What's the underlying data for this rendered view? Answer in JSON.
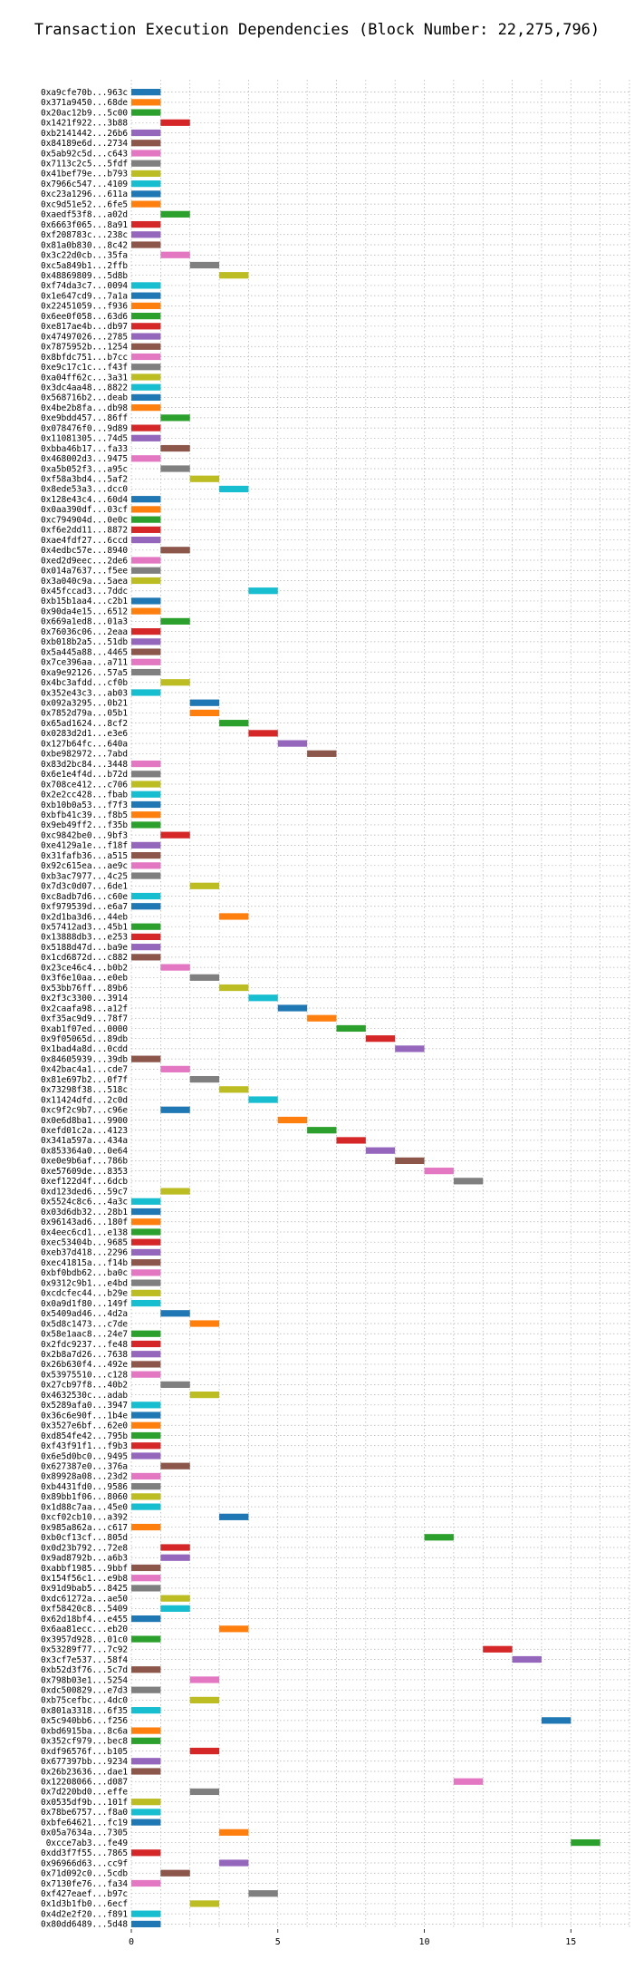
{
  "chart_data": {
    "type": "bar",
    "title": "Transaction Execution Dependencies (Block Number: 22,275,796)",
    "xlabel": "",
    "ylabel": "",
    "xlim": [
      0,
      17
    ],
    "xticks": [
      0,
      5,
      10,
      15
    ],
    "grid": true,
    "bar_length": 1,
    "colors": [
      "#1f77b4",
      "#ff7f0e",
      "#2ca02c",
      "#d62728",
      "#9467bd",
      "#8c564b",
      "#e377c2",
      "#7f7f7f",
      "#bcbd22",
      "#17becf"
    ],
    "transactions": [
      {
        "label": "0xa9cfe70b...963c",
        "start": 0,
        "color": "#1f77b4"
      },
      {
        "label": "0x371a9450...68de",
        "start": 0,
        "color": "#ff7f0e"
      },
      {
        "label": "0x20ac12b9...5c00",
        "start": 0,
        "color": "#2ca02c"
      },
      {
        "label": "0x1421f922...3b88",
        "start": 1,
        "color": "#d62728"
      },
      {
        "label": "0xb2141442...26b6",
        "start": 0,
        "color": "#9467bd"
      },
      {
        "label": "0x84189e6d...2734",
        "start": 0,
        "color": "#8c564b"
      },
      {
        "label": "0x5ab92c5d...c643",
        "start": 0,
        "color": "#e377c2"
      },
      {
        "label": "0x7113c2c5...5fdf",
        "start": 0,
        "color": "#7f7f7f"
      },
      {
        "label": "0x41bef79e...b793",
        "start": 0,
        "color": "#bcbd22"
      },
      {
        "label": "0x7966c547...4109",
        "start": 0,
        "color": "#17becf"
      },
      {
        "label": "0xc23a1296...611a",
        "start": 0,
        "color": "#1f77b4"
      },
      {
        "label": "0xc9d51e52...6fe5",
        "start": 0,
        "color": "#ff7f0e"
      },
      {
        "label": "0xaedf53f8...a02d",
        "start": 1,
        "color": "#2ca02c"
      },
      {
        "label": "0x6663f065...8a91",
        "start": 0,
        "color": "#d62728"
      },
      {
        "label": "0xf208783c...238c",
        "start": 0,
        "color": "#9467bd"
      },
      {
        "label": "0x81a0b830...8c42",
        "start": 0,
        "color": "#8c564b"
      },
      {
        "label": "0x3c22d0cb...35fa",
        "start": 1,
        "color": "#e377c2"
      },
      {
        "label": "0xc5a849b1...2ffb",
        "start": 2,
        "color": "#7f7f7f"
      },
      {
        "label": "0x48869809...5d8b",
        "start": 3,
        "color": "#bcbd22"
      },
      {
        "label": "0xf74da3c7...0094",
        "start": 0,
        "color": "#17becf"
      },
      {
        "label": "0x1e647cd9...7a1a",
        "start": 0,
        "color": "#1f77b4"
      },
      {
        "label": "0x22451059...f936",
        "start": 0,
        "color": "#ff7f0e"
      },
      {
        "label": "0x6ee0f058...63d6",
        "start": 0,
        "color": "#2ca02c"
      },
      {
        "label": "0xe817ae4b...db97",
        "start": 0,
        "color": "#d62728"
      },
      {
        "label": "0x47497026...2785",
        "start": 0,
        "color": "#9467bd"
      },
      {
        "label": "0x7875952b...1254",
        "start": 0,
        "color": "#8c564b"
      },
      {
        "label": "0x8bfdc751...b7cc",
        "start": 0,
        "color": "#e377c2"
      },
      {
        "label": "0xe9c17c1c...f43f",
        "start": 0,
        "color": "#7f7f7f"
      },
      {
        "label": "0xa04ff62c...3a31",
        "start": 0,
        "color": "#bcbd22"
      },
      {
        "label": "0x3dc4aa48...8822",
        "start": 0,
        "color": "#17becf"
      },
      {
        "label": "0x568716b2...deab",
        "start": 0,
        "color": "#1f77b4"
      },
      {
        "label": "0x4be2b8fa...db98",
        "start": 0,
        "color": "#ff7f0e"
      },
      {
        "label": "0xe9bdd457...86ff",
        "start": 1,
        "color": "#2ca02c"
      },
      {
        "label": "0x078476f0...9d89",
        "start": 0,
        "color": "#d62728"
      },
      {
        "label": "0x11081305...74d5",
        "start": 0,
        "color": "#9467bd"
      },
      {
        "label": "0xbba46b17...fa33",
        "start": 1,
        "color": "#8c564b"
      },
      {
        "label": "0x468002d3...9475",
        "start": 0,
        "color": "#e377c2"
      },
      {
        "label": "0xa5b052f3...a95c",
        "start": 1,
        "color": "#7f7f7f"
      },
      {
        "label": "0xf58a3bd4...5af2",
        "start": 2,
        "color": "#bcbd22"
      },
      {
        "label": "0x8ede53a3...dcc0",
        "start": 3,
        "color": "#17becf"
      },
      {
        "label": "0x128e43c4...60d4",
        "start": 0,
        "color": "#1f77b4"
      },
      {
        "label": "0x0aa390df...03cf",
        "start": 0,
        "color": "#ff7f0e"
      },
      {
        "label": "0xc794904d...0e0c",
        "start": 0,
        "color": "#2ca02c"
      },
      {
        "label": "0xf6e2dd11...8872",
        "start": 0,
        "color": "#d62728"
      },
      {
        "label": "0xae4fdf27...6ccd",
        "start": 0,
        "color": "#9467bd"
      },
      {
        "label": "0x4edbc57e...8940",
        "start": 1,
        "color": "#8c564b"
      },
      {
        "label": "0xed2d9eec...2de6",
        "start": 0,
        "color": "#e377c2"
      },
      {
        "label": "0x014a7637...f5ee",
        "start": 0,
        "color": "#7f7f7f"
      },
      {
        "label": "0x3a040c9a...5aea",
        "start": 0,
        "color": "#bcbd22"
      },
      {
        "label": "0x45fccad3...7ddc",
        "start": 4,
        "color": "#17becf"
      },
      {
        "label": "0xb15b1aa4...c2b1",
        "start": 0,
        "color": "#1f77b4"
      },
      {
        "label": "0x90da4e15...6512",
        "start": 0,
        "color": "#ff7f0e"
      },
      {
        "label": "0x669a1ed8...01a3",
        "start": 1,
        "color": "#2ca02c"
      },
      {
        "label": "0x76036c06...2eaa",
        "start": 0,
        "color": "#d62728"
      },
      {
        "label": "0xb018b2a5...51db",
        "start": 0,
        "color": "#9467bd"
      },
      {
        "label": "0x5a445a88...4465",
        "start": 0,
        "color": "#8c564b"
      },
      {
        "label": "0x7ce396aa...a711",
        "start": 0,
        "color": "#e377c2"
      },
      {
        "label": "0xa9e92126...57a5",
        "start": 0,
        "color": "#7f7f7f"
      },
      {
        "label": "0x4bc3afdd...cf0b",
        "start": 1,
        "color": "#bcbd22"
      },
      {
        "label": "0x352e43c3...ab03",
        "start": 0,
        "color": "#17becf"
      },
      {
        "label": "0x092a3295...0b21",
        "start": 2,
        "color": "#1f77b4"
      },
      {
        "label": "0x7852d79a...05b1",
        "start": 2,
        "color": "#ff7f0e"
      },
      {
        "label": "0x65ad1624...8cf2",
        "start": 3,
        "color": "#2ca02c"
      },
      {
        "label": "0x0283d2d1...e3e6",
        "start": 4,
        "color": "#d62728"
      },
      {
        "label": "0x127b64fc...640a",
        "start": 5,
        "color": "#9467bd"
      },
      {
        "label": "0xbe982972...7abd",
        "start": 6,
        "color": "#8c564b"
      },
      {
        "label": "0x83d2bc84...3448",
        "start": 0,
        "color": "#e377c2"
      },
      {
        "label": "0x6e1e4f4d...b72d",
        "start": 0,
        "color": "#7f7f7f"
      },
      {
        "label": "0x708ce412...c706",
        "start": 0,
        "color": "#bcbd22"
      },
      {
        "label": "0x2e2cc428...fbab",
        "start": 0,
        "color": "#17becf"
      },
      {
        "label": "0xb10b0a53...f7f3",
        "start": 0,
        "color": "#1f77b4"
      },
      {
        "label": "0xbfb41c39...f8b5",
        "start": 0,
        "color": "#ff7f0e"
      },
      {
        "label": "0x9eb49ff2...f35b",
        "start": 0,
        "color": "#2ca02c"
      },
      {
        "label": "0xc9842be0...9bf3",
        "start": 1,
        "color": "#d62728"
      },
      {
        "label": "0xe4129a1e...f18f",
        "start": 0,
        "color": "#9467bd"
      },
      {
        "label": "0x31fafb36...a515",
        "start": 0,
        "color": "#8c564b"
      },
      {
        "label": "0x92c615ea...ae9c",
        "start": 0,
        "color": "#e377c2"
      },
      {
        "label": "0xb3ac7977...4c25",
        "start": 0,
        "color": "#7f7f7f"
      },
      {
        "label": "0x7d3c0d07...6de1",
        "start": 2,
        "color": "#bcbd22"
      },
      {
        "label": "0xc8adb7d6...c60e",
        "start": 0,
        "color": "#17becf"
      },
      {
        "label": "0xf979539d...e6a7",
        "start": 0,
        "color": "#1f77b4"
      },
      {
        "label": "0x2d1ba3d6...44eb",
        "start": 3,
        "color": "#ff7f0e"
      },
      {
        "label": "0x57412ad3...45b1",
        "start": 0,
        "color": "#2ca02c"
      },
      {
        "label": "0x13888db3...e253",
        "start": 0,
        "color": "#d62728"
      },
      {
        "label": "0x5188d47d...ba9e",
        "start": 0,
        "color": "#9467bd"
      },
      {
        "label": "0x1cd6872d...c882",
        "start": 0,
        "color": "#8c564b"
      },
      {
        "label": "0x23ce46c4...b0b2",
        "start": 1,
        "color": "#e377c2"
      },
      {
        "label": "0x3f6e10aa...e0eb",
        "start": 2,
        "color": "#7f7f7f"
      },
      {
        "label": "0x53bb76ff...89b6",
        "start": 3,
        "color": "#bcbd22"
      },
      {
        "label": "0x2f3c3300...3914",
        "start": 4,
        "color": "#17becf"
      },
      {
        "label": "0x2caafa98...a12f",
        "start": 5,
        "color": "#1f77b4"
      },
      {
        "label": "0xf35ac9d9...78f7",
        "start": 6,
        "color": "#ff7f0e"
      },
      {
        "label": "0xab1f07ed...0000",
        "start": 7,
        "color": "#2ca02c"
      },
      {
        "label": "0x9f05065d...89db",
        "start": 8,
        "color": "#d62728"
      },
      {
        "label": "0x1bad4a8d...0cdd",
        "start": 9,
        "color": "#9467bd"
      },
      {
        "label": "0x84605939...39db",
        "start": 0,
        "color": "#8c564b"
      },
      {
        "label": "0x42bac4a1...cde7",
        "start": 1,
        "color": "#e377c2"
      },
      {
        "label": "0x81e697b2...0f7f",
        "start": 2,
        "color": "#7f7f7f"
      },
      {
        "label": "0x73298f38...518c",
        "start": 3,
        "color": "#bcbd22"
      },
      {
        "label": "0x11424dfd...2c0d",
        "start": 4,
        "color": "#17becf"
      },
      {
        "label": "0xc9f2c9b7...c96e",
        "start": 1,
        "color": "#1f77b4"
      },
      {
        "label": "0x0e6d8ba1...9900",
        "start": 5,
        "color": "#ff7f0e"
      },
      {
        "label": "0xefd01c2a...4123",
        "start": 6,
        "color": "#2ca02c"
      },
      {
        "label": "0x341a597a...434a",
        "start": 7,
        "color": "#d62728"
      },
      {
        "label": "0x853364a0...0e64",
        "start": 8,
        "color": "#9467bd"
      },
      {
        "label": "0xe0e9b6af...786b",
        "start": 9,
        "color": "#8c564b"
      },
      {
        "label": "0xe57609de...8353",
        "start": 10,
        "color": "#e377c2"
      },
      {
        "label": "0xef122d4f...6dcb",
        "start": 11,
        "color": "#7f7f7f"
      },
      {
        "label": "0xd123ded6...59c7",
        "start": 1,
        "color": "#bcbd22"
      },
      {
        "label": "0x5524c8c6...4a3c",
        "start": 0,
        "color": "#17becf"
      },
      {
        "label": "0x03d6db32...28b1",
        "start": 0,
        "color": "#1f77b4"
      },
      {
        "label": "0x96143ad6...180f",
        "start": 0,
        "color": "#ff7f0e"
      },
      {
        "label": "0x4eec6cd1...e138",
        "start": 0,
        "color": "#2ca02c"
      },
      {
        "label": "0xec53404b...9685",
        "start": 0,
        "color": "#d62728"
      },
      {
        "label": "0xeb37d418...2296",
        "start": 0,
        "color": "#9467bd"
      },
      {
        "label": "0xec41815a...f14b",
        "start": 0,
        "color": "#8c564b"
      },
      {
        "label": "0xbf0bdb62...ba0c",
        "start": 0,
        "color": "#e377c2"
      },
      {
        "label": "0x9312c9b1...e4bd",
        "start": 0,
        "color": "#7f7f7f"
      },
      {
        "label": "0xcdcfec44...b29e",
        "start": 0,
        "color": "#bcbd22"
      },
      {
        "label": "0x0a9d1f80...149f",
        "start": 0,
        "color": "#17becf"
      },
      {
        "label": "0x5409ad46...4d2a",
        "start": 1,
        "color": "#1f77b4"
      },
      {
        "label": "0x5d8c1473...c7de",
        "start": 2,
        "color": "#ff7f0e"
      },
      {
        "label": "0x58e1aac8...24e7",
        "start": 0,
        "color": "#2ca02c"
      },
      {
        "label": "0x2fdc9237...fe48",
        "start": 0,
        "color": "#d62728"
      },
      {
        "label": "0x2b8a7d26...7638",
        "start": 0,
        "color": "#9467bd"
      },
      {
        "label": "0x26b630f4...492e",
        "start": 0,
        "color": "#8c564b"
      },
      {
        "label": "0x53975510...c128",
        "start": 0,
        "color": "#e377c2"
      },
      {
        "label": "0x27cb97f8...40b2",
        "start": 1,
        "color": "#7f7f7f"
      },
      {
        "label": "0x4632530c...adab",
        "start": 2,
        "color": "#bcbd22"
      },
      {
        "label": "0x5289afa0...3947",
        "start": 0,
        "color": "#17becf"
      },
      {
        "label": "0x36c6e90f...1b4e",
        "start": 0,
        "color": "#1f77b4"
      },
      {
        "label": "0x3527e6bf...62e0",
        "start": 0,
        "color": "#ff7f0e"
      },
      {
        "label": "0xd854fe42...795b",
        "start": 0,
        "color": "#2ca02c"
      },
      {
        "label": "0xf43f91f1...f9b3",
        "start": 0,
        "color": "#d62728"
      },
      {
        "label": "0x6e5d0bc0...9495",
        "start": 0,
        "color": "#9467bd"
      },
      {
        "label": "0x627387e0...376a",
        "start": 1,
        "color": "#8c564b"
      },
      {
        "label": "0x89928a08...23d2",
        "start": 0,
        "color": "#e377c2"
      },
      {
        "label": "0xb4431fd0...9586",
        "start": 0,
        "color": "#7f7f7f"
      },
      {
        "label": "0x89bb1f06...8060",
        "start": 0,
        "color": "#bcbd22"
      },
      {
        "label": "0x1d88c7aa...45e0",
        "start": 0,
        "color": "#17becf"
      },
      {
        "label": "0xcf02cb10...a392",
        "start": 3,
        "color": "#1f77b4"
      },
      {
        "label": "0x985a862a...c617",
        "start": 0,
        "color": "#ff7f0e"
      },
      {
        "label": "0xb0cf13cf...805d",
        "start": 10,
        "color": "#2ca02c"
      },
      {
        "label": "0x0d23b792...72e8",
        "start": 1,
        "color": "#d62728"
      },
      {
        "label": "0x9ad8792b...a6b3",
        "start": 1,
        "color": "#9467bd"
      },
      {
        "label": "0xabbf1985...9bbf",
        "start": 0,
        "color": "#8c564b"
      },
      {
        "label": "0x154f56c1...e9b8",
        "start": 0,
        "color": "#e377c2"
      },
      {
        "label": "0x91d9bab5...8425",
        "start": 0,
        "color": "#7f7f7f"
      },
      {
        "label": "0xdc61272a...ae50",
        "start": 1,
        "color": "#bcbd22"
      },
      {
        "label": "0xf58420c8...5409",
        "start": 1,
        "color": "#17becf"
      },
      {
        "label": "0x62d18bf4...e455",
        "start": 0,
        "color": "#1f77b4"
      },
      {
        "label": "0x6aa81ecc...eb20",
        "start": 3,
        "color": "#ff7f0e"
      },
      {
        "label": "0x3957d928...01c0",
        "start": 0,
        "color": "#2ca02c"
      },
      {
        "label": "0x53289f77...7c92",
        "start": 12,
        "color": "#d62728"
      },
      {
        "label": "0x3cf7e537...58f4",
        "start": 13,
        "color": "#9467bd"
      },
      {
        "label": "0xb52d3f76...5c7d",
        "start": 0,
        "color": "#8c564b"
      },
      {
        "label": "0x798b03e1...5254",
        "start": 2,
        "color": "#e377c2"
      },
      {
        "label": "0xdc500829...e7d3",
        "start": 0,
        "color": "#7f7f7f"
      },
      {
        "label": "0xb75cefbc...4dc0",
        "start": 2,
        "color": "#bcbd22"
      },
      {
        "label": "0x801a3318...6f35",
        "start": 0,
        "color": "#17becf"
      },
      {
        "label": "0x5c940bb6...f256",
        "start": 14,
        "color": "#1f77b4"
      },
      {
        "label": "0xbd6915ba...8c6a",
        "start": 0,
        "color": "#ff7f0e"
      },
      {
        "label": "0x352cf979...bec8",
        "start": 0,
        "color": "#2ca02c"
      },
      {
        "label": "0xdf96576f...b105",
        "start": 2,
        "color": "#d62728"
      },
      {
        "label": "0x677397bb...9234",
        "start": 0,
        "color": "#9467bd"
      },
      {
        "label": "0x26b23636...dae1",
        "start": 0,
        "color": "#8c564b"
      },
      {
        "label": "0x12208066...d087",
        "start": 11,
        "color": "#e377c2"
      },
      {
        "label": "0x7d220bd0...effe",
        "start": 2,
        "color": "#7f7f7f"
      },
      {
        "label": "0x0535df9b...101f",
        "start": 0,
        "color": "#bcbd22"
      },
      {
        "label": "0x78be6757...f8a0",
        "start": 0,
        "color": "#17becf"
      },
      {
        "label": "0xbfe64621...fc19",
        "start": 0,
        "color": "#1f77b4"
      },
      {
        "label": "0x05a7634a...7305",
        "start": 3,
        "color": "#ff7f0e"
      },
      {
        "label": "0xcce7ab3...fe49",
        "start": 15,
        "color": "#2ca02c"
      },
      {
        "label": "0xdd3f7f55...7865",
        "start": 0,
        "color": "#d62728"
      },
      {
        "label": "0x96966d63...cc9f",
        "start": 3,
        "color": "#9467bd"
      },
      {
        "label": "0x71d092c0...5cdb",
        "start": 1,
        "color": "#8c564b"
      },
      {
        "label": "0x7130fe76...fa34",
        "start": 0,
        "color": "#e377c2"
      },
      {
        "label": "0xf427eaef...b97c",
        "start": 4,
        "color": "#7f7f7f"
      },
      {
        "label": "0x1d3b1fb0...6ecf",
        "start": 2,
        "color": "#bcbd22"
      },
      {
        "label": "0x4d2e2f20...f891",
        "start": 0,
        "color": "#17becf"
      },
      {
        "label": "0x80dd6489...5d48",
        "start": 0,
        "color": "#1f77b4"
      }
    ]
  }
}
